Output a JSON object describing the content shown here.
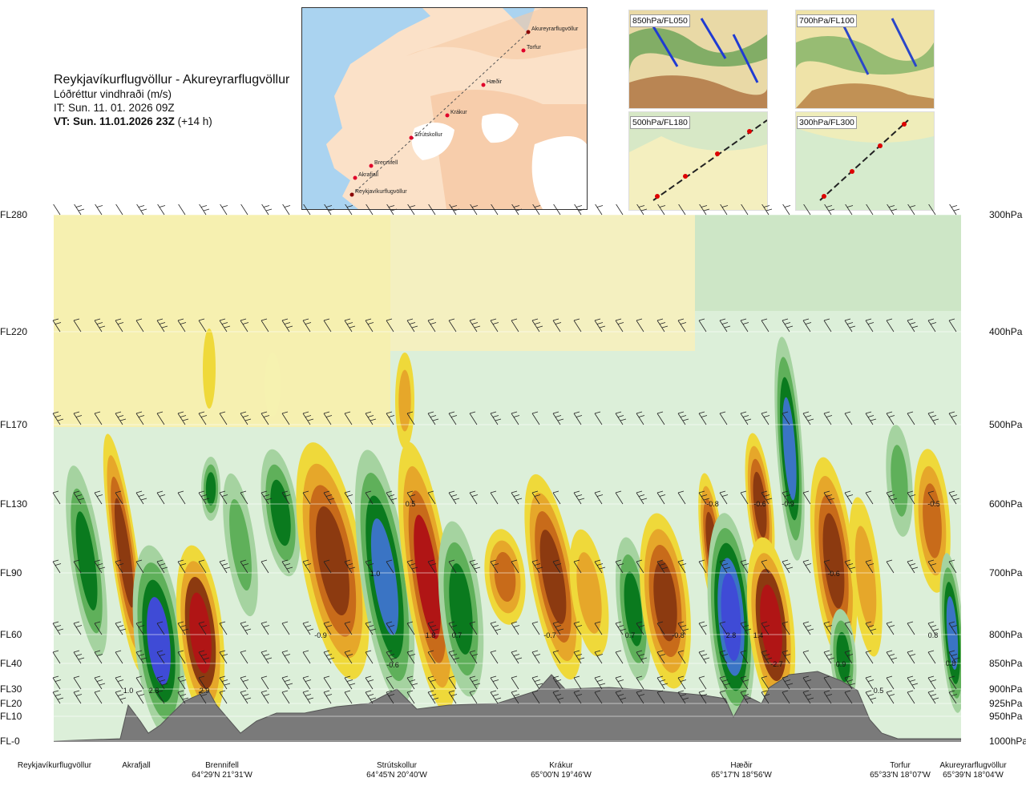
{
  "title": {
    "route": "Reykjavíkurflugvöllur - Akureyrarflugvöllur",
    "parameter": "Lóðréttur vindhraði (m/s)",
    "init_time": "IT: Sun. 11. 01. 2026 09Z",
    "valid_time": "VT: Sun. 11.01.2026 23Z",
    "lead": "(+14 h)"
  },
  "route_map": {
    "points": [
      "Akureyrarflugvöllur",
      "Torfur",
      "Hæðir",
      "Krákur",
      "Strútskollur",
      "Brennifell",
      "Akrafjall",
      "Reykjavíkurflugvöllur"
    ]
  },
  "panels": [
    {
      "label": "850hPa/FL050"
    },
    {
      "label": "700hPa/FL100"
    },
    {
      "label": "500hPa/FL180"
    },
    {
      "label": "300hPa/FL300"
    }
  ],
  "chart_data": {
    "type": "heatmap",
    "title": "Lóðréttur vindhraði (m/s)",
    "y_left_ticks": [
      "FL280",
      "FL220",
      "FL170",
      "FL130",
      "FL90",
      "FL60",
      "FL40",
      "FL30",
      "FL20",
      "FL10",
      "FL-0"
    ],
    "y_right_ticks": [
      "300hPa",
      "400hPa",
      "500hPa",
      "600hPa",
      "700hPa",
      "800hPa",
      "850hPa",
      "900hPa",
      "925hPa",
      "950hPa",
      "1000hPa"
    ],
    "pressure_levels_hpa": [
      300,
      400,
      500,
      600,
      700,
      800,
      850,
      900,
      925,
      950,
      1000
    ],
    "x_distance_fraction": [
      0,
      0.09,
      0.16,
      0.39,
      0.59,
      0.78,
      0.94,
      1.0
    ],
    "waypoints": [
      {
        "name": "Reykjavíkurflugvöllur",
        "coord": ""
      },
      {
        "name": "Akrafjall",
        "coord": ""
      },
      {
        "name": "Brennifell",
        "coord": "64°29'N 21°31'W"
      },
      {
        "name": "Strútskollur",
        "coord": "64°45'N 20°40'W"
      },
      {
        "name": "Krákur",
        "coord": "65°00'N 19°46'W"
      },
      {
        "name": "Hæðir",
        "coord": "65°17'N 18°56'W"
      },
      {
        "name": "Torfur",
        "coord": "65°33'N 18°07'W"
      },
      {
        "name": "Akureyrarflugvöllur",
        "coord": "65°39'N 18°04'W"
      }
    ],
    "color_scale": [
      "#3f4bd6",
      "#3a74c4",
      "#0a7a1e",
      "#5fb05a",
      "#a5d3a0",
      "#dcefd9",
      "#f6f2b0",
      "#efd93a",
      "#e6a72a",
      "#c86b1a",
      "#8c3a10",
      "#b01515"
    ],
    "value_labels": [
      "1.0",
      "2.8",
      "2.9",
      "-0.9",
      "1.0",
      "-0.6",
      "1.8",
      "0.7",
      "0.5",
      "-0.7",
      "0.7",
      "-0.8",
      "2.8",
      "1.4",
      "-2.7",
      "-0.8",
      "-0.6",
      "-0.9",
      "0.9",
      "-0.6",
      "0.8",
      "0.5",
      "-0.5",
      "0.8"
    ]
  }
}
